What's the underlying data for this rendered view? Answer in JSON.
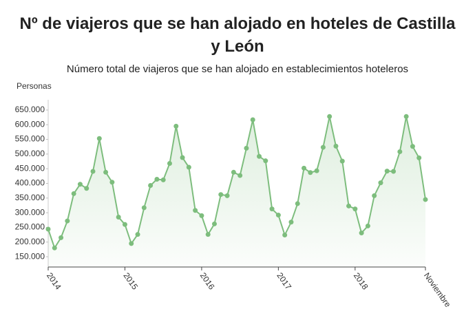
{
  "chart_data": {
    "type": "line",
    "title": "Nº de viajeros que se han alojado en hoteles de Castilla y León",
    "subtitle": "Número total de viajeros que se han alojado en establecimientos hoteleros",
    "y_label": "Personas",
    "categories": [
      "2014",
      null,
      null,
      null,
      null,
      null,
      null,
      null,
      null,
      null,
      null,
      null,
      "2015",
      null,
      null,
      null,
      null,
      null,
      null,
      null,
      null,
      null,
      null,
      null,
      "2016",
      null,
      null,
      null,
      null,
      null,
      null,
      null,
      null,
      null,
      null,
      null,
      "2017",
      null,
      null,
      null,
      null,
      null,
      null,
      null,
      null,
      null,
      null,
      null,
      "2018",
      null,
      null,
      null,
      null,
      null,
      null,
      null,
      null,
      null,
      null,
      "Noviembre"
    ],
    "values": [
      244000,
      180000,
      215000,
      272000,
      365000,
      397000,
      383000,
      441000,
      553000,
      438000,
      404000,
      285000,
      260000,
      195000,
      226000,
      317000,
      393000,
      414000,
      412000,
      468000,
      595000,
      488000,
      455000,
      308000,
      290000,
      226000,
      262000,
      362000,
      358000,
      438000,
      427000,
      520000,
      617000,
      492000,
      477000,
      313000,
      292000,
      224000,
      268000,
      331000,
      452000,
      437000,
      443000,
      523000,
      628000,
      527000,
      476000,
      323000,
      313000,
      231000,
      255000,
      358000,
      402000,
      442000,
      441000,
      508000,
      628000,
      526000,
      487000,
      345000
    ],
    "color": "#7dbd7d",
    "ylim": [
      115000,
      685000
    ],
    "yticks": [
      {
        "value": 150000,
        "label": "150.000"
      },
      {
        "value": 200000,
        "label": "200.000"
      },
      {
        "value": 250000,
        "label": "250.000"
      },
      {
        "value": 300000,
        "label": "300.000"
      },
      {
        "value": 350000,
        "label": "350.000"
      },
      {
        "value": 400000,
        "label": "400.000"
      },
      {
        "value": 450000,
        "label": "450.000"
      },
      {
        "value": 500000,
        "label": "500.000"
      },
      {
        "value": 550000,
        "label": "550.000"
      },
      {
        "value": 600000,
        "label": "600.000"
      },
      {
        "value": 650000,
        "label": "650.000"
      }
    ]
  }
}
